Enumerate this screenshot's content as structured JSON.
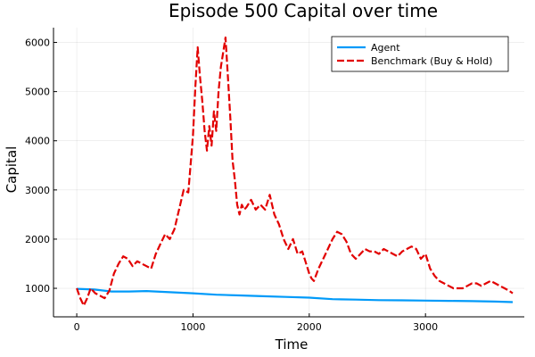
{
  "chart_data": {
    "type": "line",
    "title": "Episode 500 Capital over time",
    "xlabel": "Time",
    "ylabel": "Capital",
    "xlim": [
      -200,
      3850
    ],
    "ylim": [
      420,
      6300
    ],
    "xticks": [
      0,
      1000,
      2000,
      3000
    ],
    "yticks": [
      1000,
      2000,
      3000,
      4000,
      5000,
      6000
    ],
    "grid": true,
    "legend_position": "top-right",
    "series": [
      {
        "name": "Agent",
        "color": "#009af9",
        "style": "solid",
        "x": [
          0,
          150,
          300,
          450,
          600,
          800,
          1000,
          1200,
          1400,
          1600,
          1800,
          2000,
          2200,
          2400,
          2600,
          2800,
          3000,
          3200,
          3400,
          3600,
          3750
        ],
        "y": [
          990,
          975,
          935,
          935,
          945,
          920,
          900,
          870,
          855,
          840,
          825,
          810,
          780,
          770,
          760,
          755,
          750,
          745,
          740,
          730,
          720
        ]
      },
      {
        "name": "Benchmark (Buy & Hold)",
        "color": "#e20000",
        "style": "dashed",
        "x": [
          0,
          30,
          60,
          90,
          120,
          160,
          200,
          240,
          280,
          320,
          360,
          400,
          440,
          480,
          520,
          560,
          600,
          640,
          680,
          720,
          760,
          800,
          840,
          880,
          920,
          960,
          1000,
          1020,
          1040,
          1060,
          1080,
          1100,
          1120,
          1140,
          1160,
          1180,
          1200,
          1220,
          1240,
          1260,
          1280,
          1300,
          1320,
          1340,
          1360,
          1380,
          1400,
          1420,
          1440,
          1460,
          1500,
          1540,
          1580,
          1620,
          1660,
          1700,
          1740,
          1780,
          1820,
          1860,
          1900,
          1940,
          1980,
          2000,
          2020,
          2040,
          2080,
          2120,
          2160,
          2200,
          2240,
          2280,
          2320,
          2360,
          2400,
          2440,
          2480,
          2520,
          2560,
          2600,
          2640,
          2680,
          2720,
          2760,
          2800,
          2840,
          2880,
          2920,
          2960,
          3000,
          3040,
          3080,
          3120,
          3160,
          3200,
          3240,
          3280,
          3320,
          3360,
          3400,
          3440,
          3480,
          3520,
          3560,
          3600,
          3640,
          3680,
          3720,
          3750
        ],
        "y": [
          1000,
          800,
          650,
          800,
          1000,
          900,
          850,
          800,
          950,
          1300,
          1500,
          1650,
          1600,
          1450,
          1550,
          1500,
          1450,
          1400,
          1700,
          1900,
          2100,
          2000,
          2200,
          2600,
          3000,
          2950,
          4100,
          5100,
          5900,
          5300,
          4800,
          4200,
          3800,
          4300,
          3900,
          4600,
          4200,
          5000,
          5500,
          5800,
          6100,
          5300,
          4500,
          3600,
          3200,
          2700,
          2500,
          2700,
          2600,
          2650,
          2800,
          2600,
          2700,
          2600,
          2900,
          2500,
          2300,
          2000,
          1800,
          2000,
          1700,
          1750,
          1450,
          1300,
          1200,
          1150,
          1400,
          1600,
          1800,
          2000,
          2150,
          2100,
          1950,
          1700,
          1600,
          1700,
          1800,
          1750,
          1750,
          1700,
          1800,
          1750,
          1700,
          1650,
          1750,
          1800,
          1850,
          1800,
          1600,
          1700,
          1400,
          1250,
          1150,
          1100,
          1050,
          1000,
          1000,
          1000,
          1050,
          1100,
          1100,
          1050,
          1100,
          1150,
          1100,
          1050,
          1000,
          950,
          900
        ]
      }
    ]
  }
}
